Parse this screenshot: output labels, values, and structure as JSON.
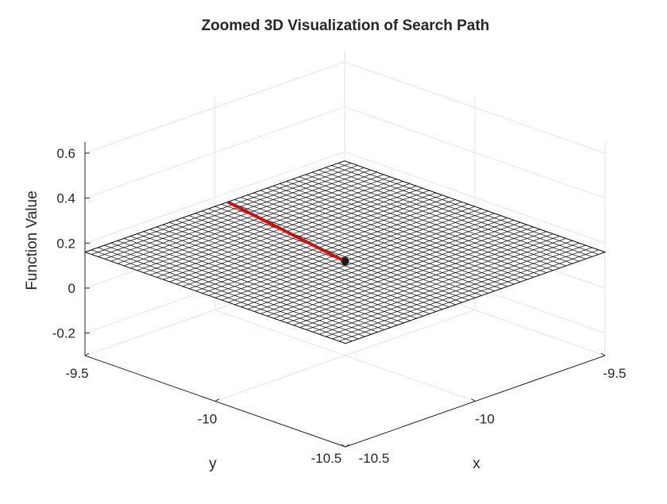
{
  "chart_data": {
    "type": "surface3d",
    "title": "Zoomed 3D Visualization of Search Path",
    "xlabel": "x",
    "ylabel": "y",
    "zlabel": "Function Value",
    "xlim": [
      -10.5,
      -9.5
    ],
    "ylim": [
      -10.5,
      -9.5
    ],
    "zlim": [
      -0.3,
      0.65
    ],
    "xticks": [
      -10.5,
      -10,
      -9.5
    ],
    "xtick_labels": [
      "-10.5",
      "-10",
      "-9.5"
    ],
    "yticks": [
      -10.5,
      -10,
      -9.5
    ],
    "ytick_labels": [
      "-10.5",
      "-10",
      "-9.5"
    ],
    "zticks": [
      -0.2,
      0,
      0.2,
      0.4,
      0.6
    ],
    "ztick_labels": [
      "-0.2",
      "0",
      "0.2",
      "0.4",
      "0.6"
    ],
    "grid": true,
    "surface": {
      "z_value": 0.16,
      "mesh_divisions": 40,
      "edge_color": "#000000",
      "face_color": "#ffffff"
    },
    "path": {
      "color": "#cc1111",
      "points": [
        {
          "x": -9.95,
          "y": -9.5,
          "z": 0.16
        },
        {
          "x": -10.05,
          "y": -10.05,
          "z": 0.16
        }
      ],
      "end_marker_color": "#1a1a1a"
    }
  }
}
